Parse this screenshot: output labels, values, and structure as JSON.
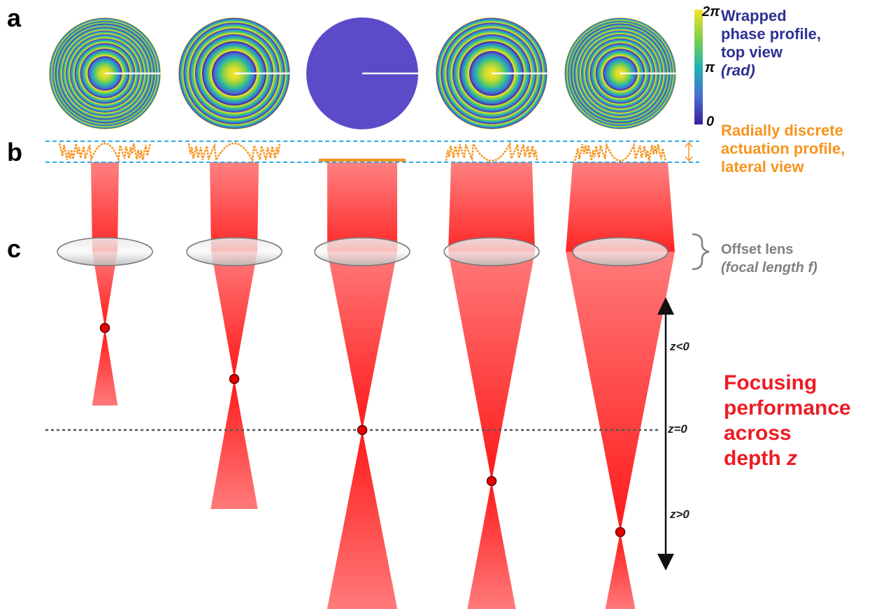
{
  "panels": [
    "a",
    "b",
    "c"
  ],
  "colorbar": {
    "tick_top": "2π",
    "tick_mid": "π",
    "tick_bottom": "0",
    "colors": [
      "#3b1fa0",
      "#4a6fd0",
      "#22b3b0",
      "#7fd04a",
      "#f5e12a"
    ]
  },
  "labels": {
    "phase_line1": "Wrapped",
    "phase_line2": "phase profile,",
    "phase_line3": "top view",
    "phase_line4": "(rad)",
    "actuation_line1": "Radially discrete",
    "actuation_line2": "actuation profile,",
    "actuation_line3": "lateral view",
    "lens_line1": "Offset lens",
    "lens_line2": "(focal length f)",
    "focus_line1": "Focusing",
    "focus_line2": "performance",
    "focus_line3": "across",
    "focus_line4": "depth",
    "focus_var": "z"
  },
  "depth_axis": {
    "neg_label": "z<0",
    "zero_label": "z=0",
    "pos_label": "z>0"
  },
  "columns": [
    {
      "rings": 10,
      "profile": "convex",
      "focus_z": -2
    },
    {
      "rings": 6,
      "profile": "convex",
      "focus_z": -1
    },
    {
      "rings": 0,
      "profile": "flat",
      "focus_z": 0
    },
    {
      "rings": 6,
      "profile": "concave",
      "focus_z": 1
    },
    {
      "rings": 10,
      "profile": "concave",
      "focus_z": 2
    }
  ],
  "style_colors": {
    "beam": "#ff2020",
    "dash_box": "#29abe2",
    "actuation": "#f7941d",
    "lens": "#bfbfbf",
    "focus_dot": "#e60000"
  }
}
